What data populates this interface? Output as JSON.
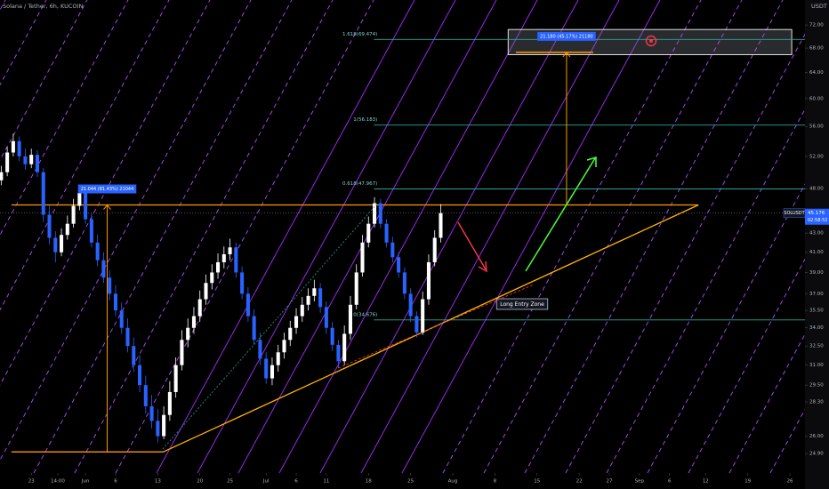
{
  "header": {
    "symbol": "Solana / Tether, 6h, KUCOIN",
    "currency": "USDT"
  },
  "chart_data": {
    "type": "candlestick",
    "x": [
      -5,
      -4,
      -3,
      -2,
      -1,
      0,
      1,
      2,
      3,
      4,
      5,
      6,
      7,
      8,
      9,
      10,
      11,
      12,
      13,
      14,
      15,
      16,
      17,
      18,
      19,
      20,
      21,
      22,
      23,
      24,
      25,
      26,
      27,
      28,
      29,
      30,
      31,
      32,
      33,
      34,
      35,
      36,
      37,
      38,
      39,
      40,
      41,
      42,
      43,
      44,
      45,
      46,
      47,
      48,
      49,
      50,
      51,
      52,
      53,
      54,
      55,
      56,
      57,
      58,
      59,
      60,
      61,
      62,
      63,
      64,
      65,
      66,
      67,
      68
    ],
    "ohlc": [
      [
        49.0,
        50.8,
        48.4,
        50.0
      ],
      [
        50.0,
        53.2,
        49.5,
        52.5
      ],
      [
        52.5,
        55.0,
        52.0,
        54.0
      ],
      [
        54.0,
        54.6,
        51.4,
        52.0
      ],
      [
        52.0,
        53.0,
        50.3,
        51.0
      ],
      [
        51.0,
        53.0,
        50.5,
        52.2
      ],
      [
        52.2,
        52.8,
        49.4,
        50.0
      ],
      [
        50.0,
        50.5,
        44.2,
        45.0
      ],
      [
        45.0,
        46.0,
        41.8,
        42.5
      ],
      [
        42.5,
        43.2,
        40.0,
        41.0
      ],
      [
        41.0,
        43.5,
        40.6,
        42.8
      ],
      [
        42.8,
        44.9,
        42.3,
        44.0
      ],
      [
        44.0,
        46.8,
        43.6,
        46.0
      ],
      [
        46.0,
        48.3,
        45.5,
        47.5
      ],
      [
        47.5,
        48.0,
        44.0,
        44.5
      ],
      [
        44.5,
        45.2,
        41.5,
        42.0
      ],
      [
        42.0,
        42.8,
        39.6,
        40.2
      ],
      [
        40.2,
        41.0,
        38.0,
        38.5
      ],
      [
        38.5,
        39.2,
        36.4,
        37.0
      ],
      [
        37.0,
        37.8,
        35.0,
        35.5
      ],
      [
        35.5,
        36.2,
        33.5,
        34.0
      ],
      [
        34.0,
        34.8,
        32.0,
        32.5
      ],
      [
        32.5,
        33.2,
        30.5,
        31.0
      ],
      [
        31.0,
        31.8,
        29.0,
        29.5
      ],
      [
        29.5,
        30.2,
        27.5,
        28.0
      ],
      [
        28.0,
        28.8,
        26.5,
        27.0
      ],
      [
        27.0,
        27.8,
        25.6,
        26.0
      ],
      [
        26.0,
        28.0,
        25.8,
        27.4
      ],
      [
        27.4,
        29.8,
        27.0,
        29.0
      ],
      [
        29.0,
        31.6,
        28.6,
        31.0
      ],
      [
        31.0,
        33.8,
        30.6,
        33.0
      ],
      [
        33.0,
        34.8,
        32.4,
        34.0
      ],
      [
        34.0,
        35.8,
        33.5,
        35.0
      ],
      [
        35.0,
        37.3,
        34.5,
        36.5
      ],
      [
        36.5,
        38.8,
        36.0,
        38.0
      ],
      [
        38.0,
        39.8,
        37.4,
        39.0
      ],
      [
        39.0,
        40.9,
        38.4,
        40.0
      ],
      [
        40.0,
        41.6,
        39.4,
        40.8
      ],
      [
        40.8,
        42.4,
        40.2,
        41.5
      ],
      [
        41.5,
        42.0,
        38.5,
        39.0
      ],
      [
        39.0,
        39.6,
        36.5,
        37.0
      ],
      [
        37.0,
        37.6,
        34.5,
        35.0
      ],
      [
        35.0,
        35.6,
        32.6,
        33.0
      ],
      [
        33.0,
        33.6,
        31.0,
        31.5
      ],
      [
        31.5,
        32.0,
        29.6,
        30.0
      ],
      [
        30.0,
        31.6,
        29.5,
        31.0
      ],
      [
        31.0,
        32.6,
        30.5,
        32.0
      ],
      [
        32.0,
        33.6,
        31.5,
        33.0
      ],
      [
        33.0,
        34.6,
        32.5,
        34.0
      ],
      [
        34.0,
        35.7,
        33.5,
        35.0
      ],
      [
        35.0,
        36.7,
        34.5,
        36.0
      ],
      [
        36.0,
        37.5,
        35.5,
        36.8
      ],
      [
        36.8,
        38.3,
        36.3,
        37.5
      ],
      [
        37.5,
        38.0,
        35.3,
        35.8
      ],
      [
        35.8,
        36.3,
        33.5,
        34.0
      ],
      [
        34.0,
        34.5,
        32.1,
        32.6
      ],
      [
        32.6,
        33.0,
        30.8,
        31.3
      ],
      [
        31.3,
        34.2,
        31.0,
        33.5
      ],
      [
        33.5,
        36.8,
        33.0,
        36.0
      ],
      [
        36.0,
        39.8,
        35.6,
        39.0
      ],
      [
        39.0,
        42.8,
        38.6,
        42.0
      ],
      [
        42.0,
        44.8,
        41.5,
        44.0
      ],
      [
        44.0,
        47.0,
        43.6,
        46.3
      ],
      [
        46.3,
        46.8,
        43.5,
        44.0
      ],
      [
        44.0,
        44.5,
        41.5,
        42.0
      ],
      [
        42.0,
        42.6,
        40.0,
        40.5
      ],
      [
        40.5,
        41.0,
        38.5,
        39.0
      ],
      [
        39.0,
        39.5,
        36.5,
        37.0
      ],
      [
        37.0,
        37.5,
        34.5,
        35.0
      ],
      [
        35.0,
        35.4,
        33.2,
        33.6
      ],
      [
        33.6,
        37.2,
        33.4,
        36.5
      ],
      [
        36.5,
        40.8,
        36.0,
        40.0
      ],
      [
        40.0,
        43.3,
        39.6,
        42.5
      ],
      [
        42.5,
        46.2,
        42.0,
        45.18
      ]
    ],
    "xlim": [
      -5.2,
      128.5
    ],
    "xticks": [
      {
        "value": 0,
        "label": "23"
      },
      {
        "value": 4.4,
        "label": "14:00"
      },
      {
        "value": 9,
        "label": "Jun"
      },
      {
        "value": 14,
        "label": "6"
      },
      {
        "value": 21,
        "label": "13"
      },
      {
        "value": 28,
        "label": "20"
      },
      {
        "value": 33,
        "label": "25"
      },
      {
        "value": 39,
        "label": "Jul"
      },
      {
        "value": 44,
        "label": "6"
      },
      {
        "value": 49,
        "label": "11"
      },
      {
        "value": 56,
        "label": "18"
      },
      {
        "value": 63,
        "label": "25"
      },
      {
        "value": 70,
        "label": "Aug"
      },
      {
        "value": 77,
        "label": "8"
      },
      {
        "value": 84,
        "label": "15"
      },
      {
        "value": 91,
        "label": "22"
      },
      {
        "value": 96,
        "label": "27"
      },
      {
        "value": 101,
        "label": "Sep"
      },
      {
        "value": 106,
        "label": "6"
      },
      {
        "value": 112,
        "label": "12"
      },
      {
        "value": 119,
        "label": "19"
      },
      {
        "value": 126,
        "label": "26"
      }
    ],
    "ylim": [
      23.73,
      76.6
    ],
    "log_scale": true,
    "yticks": [
      {
        "value": 72,
        "label": "72.00"
      },
      {
        "value": 68,
        "label": "68.00"
      },
      {
        "value": 64,
        "label": "64.00"
      },
      {
        "value": 60,
        "label": "60.00"
      },
      {
        "value": 56,
        "label": "56.00"
      },
      {
        "value": 52,
        "label": "52.00"
      },
      {
        "value": 48,
        "label": "48.00"
      },
      {
        "value": 43,
        "label": "43.00"
      },
      {
        "value": 41,
        "label": "41.00"
      },
      {
        "value": 39,
        "label": "39.00"
      },
      {
        "value": 37,
        "label": "37.00"
      },
      {
        "value": 35.5,
        "label": "35.50"
      },
      {
        "value": 34,
        "label": "34.00"
      },
      {
        "value": 32.5,
        "label": "32.50"
      },
      {
        "value": 31,
        "label": "31.00"
      },
      {
        "value": 29.5,
        "label": "29.50"
      },
      {
        "value": 28.3,
        "label": "28.30"
      },
      {
        "value": 26,
        "label": "26.00"
      },
      {
        "value": 24.9,
        "label": "24.90"
      }
    ],
    "up_color": "#ffffff",
    "down_color": "#2962ff",
    "last_price": {
      "value": 45.176,
      "label": "45.176",
      "symbol": "SOLUSDT",
      "countdown": "02:58:52"
    },
    "fib_levels": [
      {
        "value": 69.474,
        "label": "1.618(69.474)"
      },
      {
        "value": 56.183,
        "label": "1(56.183)"
      },
      {
        "value": 47.967,
        "label": "0.618(47.967)"
      },
      {
        "value": 34.676,
        "label": "0(34.676)"
      }
    ],
    "fib_start": 56.9,
    "resistance": {
      "x": [
        -3.3,
        110.8
      ],
      "value": 46.1
    },
    "support": {
      "x": [
        -3.3,
        21.9
      ],
      "value": 25.0
    },
    "trendline": {
      "x": [
        21.9,
        110.8
      ],
      "y": [
        25.0,
        46.1
      ]
    },
    "measures": [
      {
        "label": "21.044 (81.43%) 21044",
        "x": 12.6,
        "from": 25.0,
        "to": 46.1
      },
      {
        "label": "21.180 (45.17%) 21180",
        "x": 88.9,
        "from": 46.1,
        "to": 67.28
      }
    ],
    "target_zone": {
      "x": [
        79.2,
        126.3
      ],
      "y": [
        66.9,
        71.2
      ]
    },
    "annotations": [
      {
        "text": "Long Entry Zone"
      }
    ]
  }
}
